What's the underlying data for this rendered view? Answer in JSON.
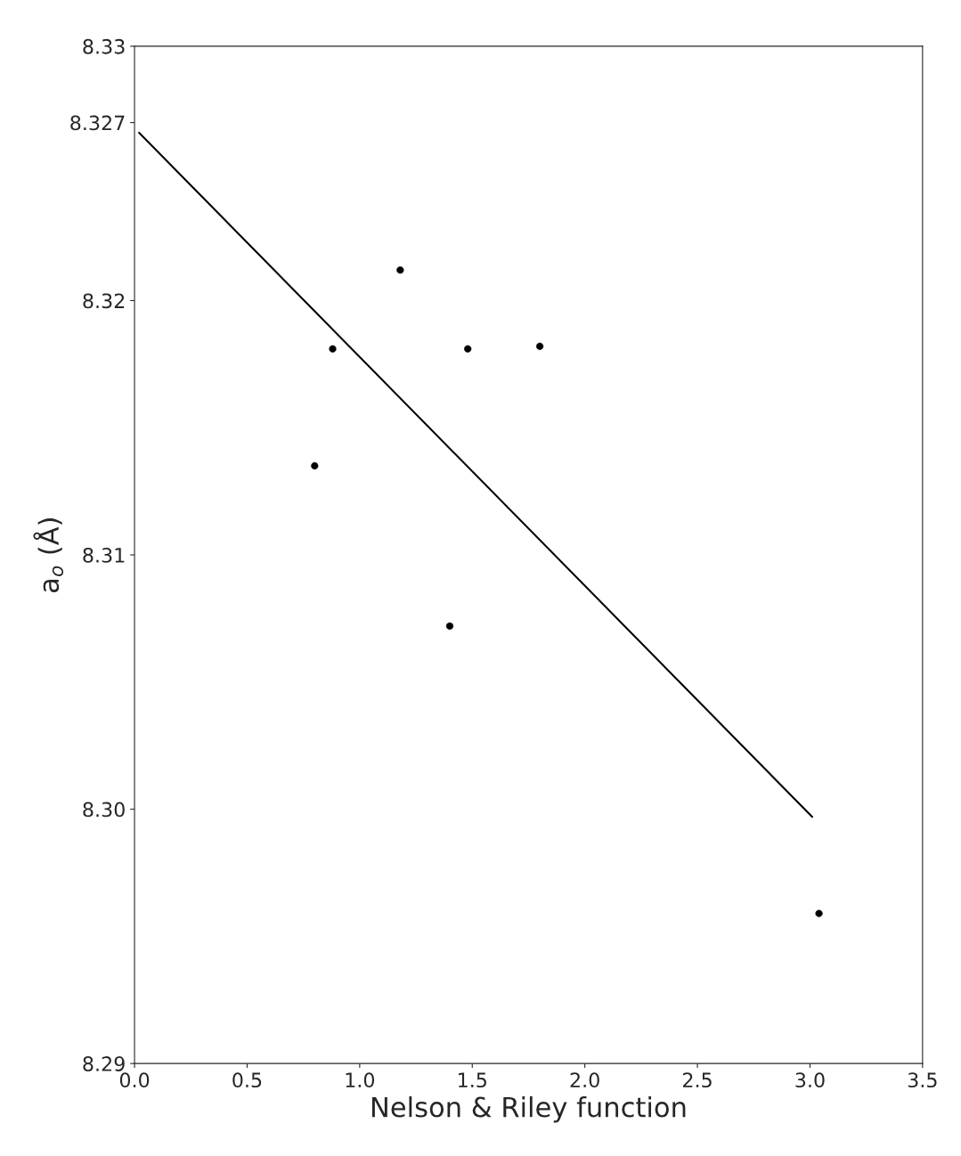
{
  "chart_data": {
    "type": "scatter",
    "xlabel": "Nelson & Riley function",
    "ylabel": "a$_{o}$ (Å)",
    "xlim": [
      0.0,
      3.5
    ],
    "xticks": [
      {
        "value": 0.0,
        "label": "0.0"
      },
      0.5,
      {
        "value": 1.0,
        "label": "1.0"
      },
      1.5,
      {
        "value": 2.0,
        "label": "2.0"
      },
      2.5,
      {
        "value": 3.0,
        "label": "3.0"
      },
      3.5
    ],
    "ylim": [
      8.29,
      8.33
    ],
    "yticks": [
      8.29,
      {
        "value": 8.3,
        "label": "8.30"
      },
      8.31,
      8.32,
      {
        "value": 8.327,
        "label": "8.327"
      },
      8.33
    ],
    "grid": false,
    "series": [
      {
        "color": "#000000",
        "marker": "circle",
        "x": [
          0.8,
          0.88,
          1.18,
          1.4,
          1.48,
          1.8,
          3.04
        ],
        "values": [
          8.3135,
          8.3181,
          8.3212,
          8.3072,
          8.3181,
          8.3182,
          8.2959
        ]
      },
      {
        "type": "line",
        "marker": "none",
        "color": "#000000",
        "x": [
          0.02,
          3.01
        ],
        "values": [
          8.3266,
          8.2997
        ]
      }
    ]
  }
}
